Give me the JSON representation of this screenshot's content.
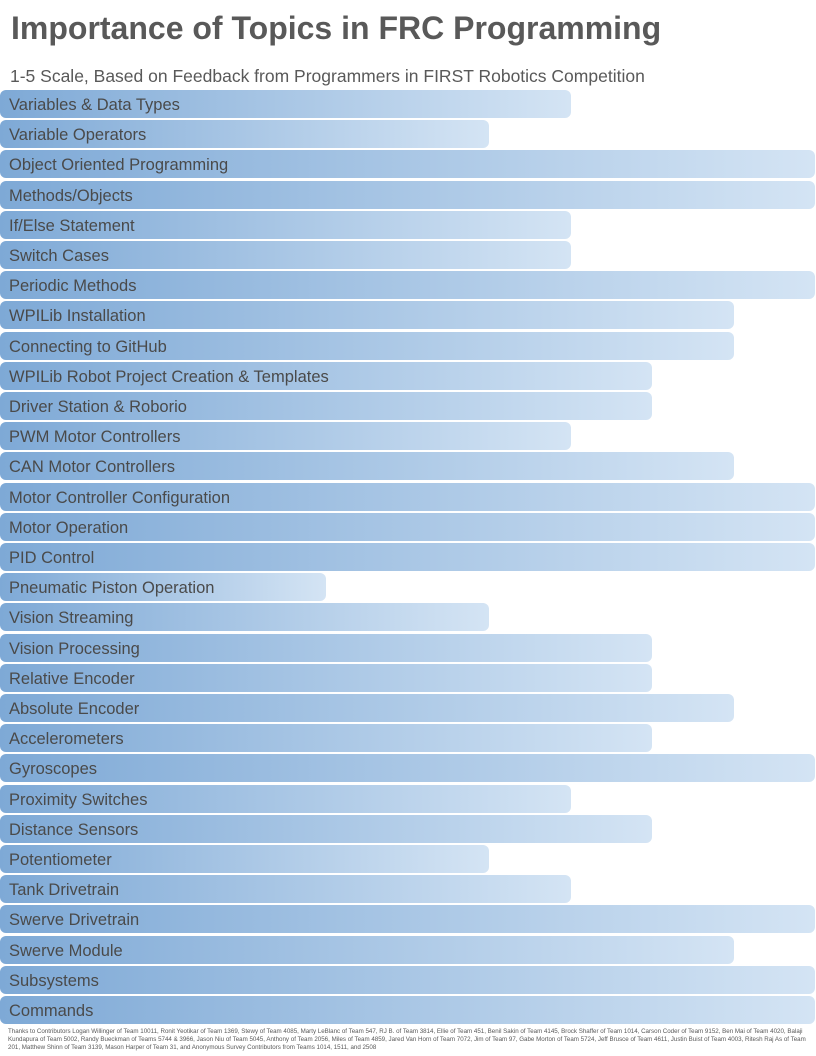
{
  "title": "Importance of Topics in FRC Programming",
  "subtitle": "1-5 Scale, Based on Feedback from Programmers in FIRST Robotics Competition",
  "footer": "Thanks to Contributors Logan Willinger of Team 10011, Ronit Yeotikar of Team 1369, Stewy of Team 4085, Marty LeBlanc of Team 547, RJ B. of Team 3814, Ellie of Team 451, Benil Sakin of Team 4145, Brock Shaffer of Team 1014, Carson Coder of Team 9152, Ben Mai of Team 4020, Balaji Kundapura of Team 5002, Randy Bueckman of Teams 5744 & 3966, Jason Niu of Team 5045, Anthony of Team 2056, Miles of Team 4859, Jared Van Horn of Team 7072, Jim of Team 97, Gabe Morton of Team 5724, Jeff Brusce of Team 4611, Justin Buist of Team 4003, Ritesh Raj As of Team 201, Matthew Shinn of Team 3139, Mason Harper of Team 31, and Anonymous Survey Contributors from Teams 1014, 1511, and 2508",
  "colors": {
    "bar_start": "#7ea9d6",
    "bar_end": "#d4e4f4",
    "label": "#4a4a4a",
    "title": "#595959"
  },
  "chart_data": {
    "type": "bar",
    "orientation": "horizontal",
    "title": "Importance of Topics in FRC Programming",
    "subtitle": "1-5 Scale, Based on Feedback from Programmers in FIRST Robotics Competition",
    "xlim": [
      0,
      5
    ],
    "grid": false,
    "categories": [
      "Variables & Data Types",
      "Variable Operators",
      "Object Oriented Programming",
      "Methods/Objects",
      "If/Else Statement",
      "Switch Cases",
      "Periodic Methods",
      "WPILib Installation",
      "Connecting to GitHub",
      "WPILib Robot Project Creation & Templates",
      "Driver Station & Roborio",
      "PWM Motor Controllers",
      "CAN Motor Controllers",
      "Motor Controller Configuration",
      "Motor Operation",
      "PID Control",
      "Pneumatic Piston Operation",
      "Vision Streaming",
      "Vision Processing",
      "Relative Encoder",
      "Absolute Encoder",
      "Accelerometers",
      "Gyroscopes",
      "Proximity Switches",
      "Distance Sensors",
      "Potentiometer",
      "Tank Drivetrain",
      "Swerve Drivetrain",
      "Swerve Module",
      "Subsystems",
      "Commands"
    ],
    "values": [
      3.5,
      3.0,
      5.0,
      5.0,
      3.5,
      3.5,
      5.0,
      4.5,
      4.5,
      4.0,
      4.0,
      3.5,
      4.5,
      5.0,
      5.0,
      5.0,
      2.0,
      3.0,
      4.0,
      4.0,
      4.5,
      4.0,
      5.0,
      3.5,
      4.0,
      3.0,
      3.5,
      5.0,
      4.5,
      5.0,
      5.0
    ]
  }
}
